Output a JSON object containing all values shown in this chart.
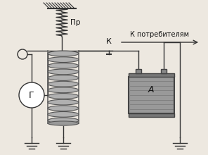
{
  "bg_color": "#ede8e0",
  "text_color": "#111111",
  "line_color": "#333333",
  "label_pr": "Пр",
  "label_k": "К",
  "label_k_consumers": "К потребителям",
  "label_g": "Г",
  "label_a": "А",
  "figsize": [
    2.96,
    2.2
  ],
  "dpi": 100
}
